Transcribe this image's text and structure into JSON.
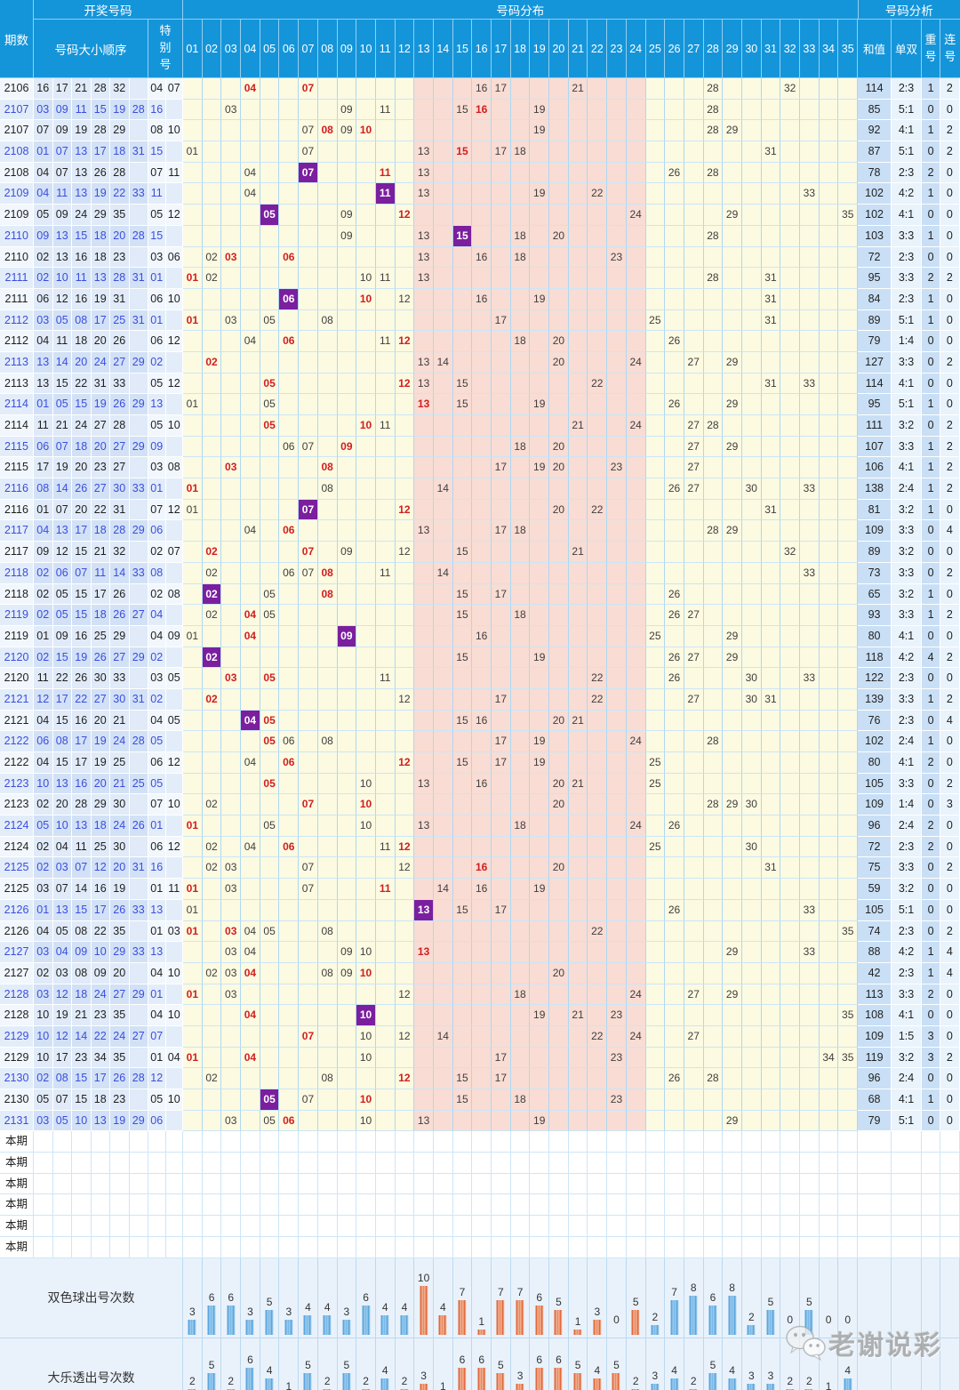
{
  "header": {
    "period": "期数",
    "draw_group": "开奖号码",
    "order": "号码大小顺序",
    "special": "特别号",
    "dist_group": "号码分布",
    "analysis_group": "号码分析",
    "sum": "和值",
    "odd_even": "单双",
    "repeat": "重号",
    "consecutive": "连号",
    "dist_columns": [
      "01",
      "02",
      "03",
      "04",
      "05",
      "06",
      "07",
      "08",
      "09",
      "10",
      "11",
      "12",
      "13",
      "14",
      "15",
      "16",
      "17",
      "18",
      "19",
      "20",
      "21",
      "22",
      "23",
      "24",
      "25",
      "26",
      "27",
      "28",
      "29",
      "30",
      "31",
      "32",
      "33",
      "34",
      "35"
    ]
  },
  "rows": [
    {
      "period": "2106",
      "game": "dlt",
      "numbers": [
        16,
        17,
        21,
        28,
        32
      ],
      "special": [
        4,
        7
      ],
      "sum": 114,
      "odd_even": "2:3",
      "repeat": 1,
      "consecutive": 2
    },
    {
      "period": "2107",
      "game": "ssq",
      "numbers": [
        3,
        9,
        11,
        15,
        19,
        28
      ],
      "special": [
        16
      ],
      "sum": 85,
      "odd_even": "5:1",
      "repeat": 0,
      "consecutive": 0
    },
    {
      "period": "2107",
      "game": "dlt",
      "numbers": [
        7,
        9,
        19,
        28,
        29
      ],
      "special": [
        8,
        10
      ],
      "sum": 92,
      "odd_even": "4:1",
      "repeat": 1,
      "consecutive": 2
    },
    {
      "period": "2108",
      "game": "ssq",
      "numbers": [
        1,
        7,
        13,
        17,
        18,
        31
      ],
      "special": [
        15
      ],
      "sum": 87,
      "odd_even": "5:1",
      "repeat": 0,
      "consecutive": 2
    },
    {
      "period": "2108",
      "game": "dlt",
      "numbers": [
        4,
        7,
        13,
        26,
        28
      ],
      "special": [
        7,
        11
      ],
      "sum": 78,
      "odd_even": "2:3",
      "repeat": 2,
      "consecutive": 0
    },
    {
      "period": "2109",
      "game": "ssq",
      "numbers": [
        4,
        11,
        13,
        19,
        22,
        33
      ],
      "special": [
        11
      ],
      "sum": 102,
      "odd_even": "4:2",
      "repeat": 1,
      "consecutive": 0
    },
    {
      "period": "2109",
      "game": "dlt",
      "numbers": [
        5,
        9,
        24,
        29,
        35
      ],
      "special": [
        5,
        12
      ],
      "sum": 102,
      "odd_even": "4:1",
      "repeat": 0,
      "consecutive": 0
    },
    {
      "period": "2110",
      "game": "ssq",
      "numbers": [
        9,
        13,
        15,
        18,
        20,
        28
      ],
      "special": [
        15
      ],
      "sum": 103,
      "odd_even": "3:3",
      "repeat": 1,
      "consecutive": 0
    },
    {
      "period": "2110",
      "game": "dlt",
      "numbers": [
        2,
        13,
        16,
        18,
        23
      ],
      "special": [
        3,
        6
      ],
      "sum": 72,
      "odd_even": "2:3",
      "repeat": 0,
      "consecutive": 0
    },
    {
      "period": "2111",
      "game": "ssq",
      "numbers": [
        2,
        10,
        11,
        13,
        28,
        31
      ],
      "special": [
        1
      ],
      "sum": 95,
      "odd_even": "3:3",
      "repeat": 2,
      "consecutive": 2
    },
    {
      "period": "2111",
      "game": "dlt",
      "numbers": [
        6,
        12,
        16,
        19,
        31
      ],
      "special": [
        6,
        10
      ],
      "sum": 84,
      "odd_even": "2:3",
      "repeat": 1,
      "consecutive": 0
    },
    {
      "period": "2112",
      "game": "ssq",
      "numbers": [
        3,
        5,
        8,
        17,
        25,
        31
      ],
      "special": [
        1
      ],
      "sum": 89,
      "odd_even": "5:1",
      "repeat": 1,
      "consecutive": 0
    },
    {
      "period": "2112",
      "game": "dlt",
      "numbers": [
        4,
        11,
        18,
        20,
        26
      ],
      "special": [
        6,
        12
      ],
      "sum": 79,
      "odd_even": "1:4",
      "repeat": 0,
      "consecutive": 0
    },
    {
      "period": "2113",
      "game": "ssq",
      "numbers": [
        13,
        14,
        20,
        24,
        27,
        29
      ],
      "special": [
        2
      ],
      "sum": 127,
      "odd_even": "3:3",
      "repeat": 0,
      "consecutive": 2
    },
    {
      "period": "2113",
      "game": "dlt",
      "numbers": [
        13,
        15,
        22,
        31,
        33
      ],
      "special": [
        5,
        12
      ],
      "sum": 114,
      "odd_even": "4:1",
      "repeat": 0,
      "consecutive": 0
    },
    {
      "period": "2114",
      "game": "ssq",
      "numbers": [
        1,
        5,
        15,
        19,
        26,
        29
      ],
      "special": [
        13
      ],
      "sum": 95,
      "odd_even": "5:1",
      "repeat": 1,
      "consecutive": 0
    },
    {
      "period": "2114",
      "game": "dlt",
      "numbers": [
        11,
        21,
        24,
        27,
        28
      ],
      "special": [
        5,
        10
      ],
      "sum": 111,
      "odd_even": "3:2",
      "repeat": 0,
      "consecutive": 2
    },
    {
      "period": "2115",
      "game": "ssq",
      "numbers": [
        6,
        7,
        18,
        20,
        27,
        29
      ],
      "special": [
        9
      ],
      "sum": 107,
      "odd_even": "3:3",
      "repeat": 1,
      "consecutive": 2
    },
    {
      "period": "2115",
      "game": "dlt",
      "numbers": [
        17,
        19,
        20,
        23,
        27
      ],
      "special": [
        3,
        8
      ],
      "sum": 106,
      "odd_even": "4:1",
      "repeat": 1,
      "consecutive": 2
    },
    {
      "period": "2116",
      "game": "ssq",
      "numbers": [
        8,
        14,
        26,
        27,
        30,
        33
      ],
      "special": [
        1
      ],
      "sum": 138,
      "odd_even": "2:4",
      "repeat": 1,
      "consecutive": 2
    },
    {
      "period": "2116",
      "game": "dlt",
      "numbers": [
        1,
        7,
        20,
        22,
        31
      ],
      "special": [
        7,
        12
      ],
      "sum": 81,
      "odd_even": "3:2",
      "repeat": 1,
      "consecutive": 0
    },
    {
      "period": "2117",
      "game": "ssq",
      "numbers": [
        4,
        13,
        17,
        18,
        28,
        29
      ],
      "special": [
        6
      ],
      "sum": 109,
      "odd_even": "3:3",
      "repeat": 0,
      "consecutive": 4
    },
    {
      "period": "2117",
      "game": "dlt",
      "numbers": [
        9,
        12,
        15,
        21,
        32
      ],
      "special": [
        2,
        7
      ],
      "sum": 89,
      "odd_even": "3:2",
      "repeat": 0,
      "consecutive": 0
    },
    {
      "period": "2118",
      "game": "ssq",
      "numbers": [
        2,
        6,
        7,
        11,
        14,
        33
      ],
      "special": [
        8
      ],
      "sum": 73,
      "odd_even": "3:3",
      "repeat": 0,
      "consecutive": 2
    },
    {
      "period": "2118",
      "game": "dlt",
      "numbers": [
        2,
        5,
        15,
        17,
        26
      ],
      "special": [
        2,
        8
      ],
      "sum": 65,
      "odd_even": "3:2",
      "repeat": 1,
      "consecutive": 0
    },
    {
      "period": "2119",
      "game": "ssq",
      "numbers": [
        2,
        5,
        15,
        18,
        26,
        27
      ],
      "special": [
        4
      ],
      "sum": 93,
      "odd_even": "3:3",
      "repeat": 1,
      "consecutive": 2
    },
    {
      "period": "2119",
      "game": "dlt",
      "numbers": [
        1,
        9,
        16,
        25,
        29
      ],
      "special": [
        4,
        9
      ],
      "sum": 80,
      "odd_even": "4:1",
      "repeat": 0,
      "consecutive": 0
    },
    {
      "period": "2120",
      "game": "ssq",
      "numbers": [
        2,
        15,
        19,
        26,
        27,
        29
      ],
      "special": [
        2
      ],
      "sum": 118,
      "odd_even": "4:2",
      "repeat": 4,
      "consecutive": 2
    },
    {
      "period": "2120",
      "game": "dlt",
      "numbers": [
        11,
        22,
        26,
        30,
        33
      ],
      "special": [
        3,
        5
      ],
      "sum": 122,
      "odd_even": "2:3",
      "repeat": 0,
      "consecutive": 0
    },
    {
      "period": "2121",
      "game": "ssq",
      "numbers": [
        12,
        17,
        22,
        27,
        30,
        31
      ],
      "special": [
        2
      ],
      "sum": 139,
      "odd_even": "3:3",
      "repeat": 1,
      "consecutive": 2
    },
    {
      "period": "2121",
      "game": "dlt",
      "numbers": [
        4,
        15,
        16,
        20,
        21
      ],
      "special": [
        4,
        5
      ],
      "sum": 76,
      "odd_even": "2:3",
      "repeat": 0,
      "consecutive": 4
    },
    {
      "period": "2122",
      "game": "ssq",
      "numbers": [
        6,
        8,
        17,
        19,
        24,
        28
      ],
      "special": [
        5
      ],
      "sum": 102,
      "odd_even": "2:4",
      "repeat": 1,
      "consecutive": 0
    },
    {
      "period": "2122",
      "game": "dlt",
      "numbers": [
        4,
        15,
        17,
        19,
        25
      ],
      "special": [
        6,
        12
      ],
      "sum": 80,
      "odd_even": "4:1",
      "repeat": 2,
      "consecutive": 0
    },
    {
      "period": "2123",
      "game": "ssq",
      "numbers": [
        10,
        13,
        16,
        20,
        21,
        25
      ],
      "special": [
        5
      ],
      "sum": 105,
      "odd_even": "3:3",
      "repeat": 0,
      "consecutive": 2
    },
    {
      "period": "2123",
      "game": "dlt",
      "numbers": [
        2,
        20,
        28,
        29,
        30
      ],
      "special": [
        7,
        10
      ],
      "sum": 109,
      "odd_even": "1:4",
      "repeat": 0,
      "consecutive": 3
    },
    {
      "period": "2124",
      "game": "ssq",
      "numbers": [
        5,
        10,
        13,
        18,
        24,
        26
      ],
      "special": [
        1
      ],
      "sum": 96,
      "odd_even": "2:4",
      "repeat": 2,
      "consecutive": 0
    },
    {
      "period": "2124",
      "game": "dlt",
      "numbers": [
        2,
        4,
        11,
        25,
        30
      ],
      "special": [
        6,
        12
      ],
      "sum": 72,
      "odd_even": "2:3",
      "repeat": 2,
      "consecutive": 0
    },
    {
      "period": "2125",
      "game": "ssq",
      "numbers": [
        2,
        3,
        7,
        12,
        20,
        31
      ],
      "special": [
        16
      ],
      "sum": 75,
      "odd_even": "3:3",
      "repeat": 0,
      "consecutive": 2
    },
    {
      "period": "2125",
      "game": "dlt",
      "numbers": [
        3,
        7,
        14,
        16,
        19
      ],
      "special": [
        1,
        11
      ],
      "sum": 59,
      "odd_even": "3:2",
      "repeat": 0,
      "consecutive": 0
    },
    {
      "period": "2126",
      "game": "ssq",
      "numbers": [
        1,
        13,
        15,
        17,
        26,
        33
      ],
      "special": [
        13
      ],
      "sum": 105,
      "odd_even": "5:1",
      "repeat": 0,
      "consecutive": 0
    },
    {
      "period": "2126",
      "game": "dlt",
      "numbers": [
        4,
        5,
        8,
        22,
        35
      ],
      "special": [
        1,
        3
      ],
      "sum": 74,
      "odd_even": "2:3",
      "repeat": 0,
      "consecutive": 2
    },
    {
      "period": "2127",
      "game": "ssq",
      "numbers": [
        3,
        4,
        9,
        10,
        29,
        33
      ],
      "special": [
        13
      ],
      "sum": 88,
      "odd_even": "4:2",
      "repeat": 1,
      "consecutive": 4
    },
    {
      "period": "2127",
      "game": "dlt",
      "numbers": [
        2,
        3,
        8,
        9,
        20
      ],
      "special": [
        4,
        10
      ],
      "sum": 42,
      "odd_even": "2:3",
      "repeat": 1,
      "consecutive": 4
    },
    {
      "period": "2128",
      "game": "ssq",
      "numbers": [
        3,
        12,
        18,
        24,
        27,
        29
      ],
      "special": [
        1
      ],
      "sum": 113,
      "odd_even": "3:3",
      "repeat": 2,
      "consecutive": 0
    },
    {
      "period": "2128",
      "game": "dlt",
      "numbers": [
        10,
        19,
        21,
        23,
        35
      ],
      "special": [
        4,
        10
      ],
      "sum": 108,
      "odd_even": "4:1",
      "repeat": 0,
      "consecutive": 0
    },
    {
      "period": "2129",
      "game": "ssq",
      "numbers": [
        10,
        12,
        14,
        22,
        24,
        27
      ],
      "special": [
        7
      ],
      "sum": 109,
      "odd_even": "1:5",
      "repeat": 3,
      "consecutive": 0
    },
    {
      "period": "2129",
      "game": "dlt",
      "numbers": [
        10,
        17,
        23,
        34,
        35
      ],
      "special": [
        1,
        4
      ],
      "sum": 119,
      "odd_even": "3:2",
      "repeat": 3,
      "consecutive": 2
    },
    {
      "period": "2130",
      "game": "ssq",
      "numbers": [
        2,
        8,
        15,
        17,
        26,
        28
      ],
      "special": [
        12
      ],
      "sum": 96,
      "odd_even": "2:4",
      "repeat": 0,
      "consecutive": 0
    },
    {
      "period": "2130",
      "game": "dlt",
      "numbers": [
        5,
        7,
        15,
        18,
        23
      ],
      "special": [
        5,
        10
      ],
      "sum": 68,
      "odd_even": "4:1",
      "repeat": 1,
      "consecutive": 0
    },
    {
      "period": "2131",
      "game": "ssq",
      "numbers": [
        3,
        5,
        10,
        13,
        19,
        29
      ],
      "special": [
        6
      ],
      "sum": 79,
      "odd_even": "5:1",
      "repeat": 0,
      "consecutive": 0
    }
  ],
  "pending": {
    "label": "本期",
    "count": 6
  },
  "chart_data": [
    {
      "type": "bar",
      "title": "双色球出号次数",
      "categories": [
        "01",
        "02",
        "03",
        "04",
        "05",
        "06",
        "07",
        "08",
        "09",
        "10",
        "11",
        "12",
        "13",
        "14",
        "15",
        "16",
        "17",
        "18",
        "19",
        "20",
        "21",
        "22",
        "23",
        "24",
        "25",
        "26",
        "27",
        "28",
        "29",
        "30",
        "31",
        "32",
        "33",
        "34",
        "35"
      ],
      "values": [
        3,
        6,
        6,
        3,
        5,
        3,
        4,
        4,
        3,
        6,
        4,
        4,
        10,
        4,
        7,
        1,
        7,
        7,
        6,
        5,
        1,
        3,
        0,
        5,
        2,
        7,
        8,
        6,
        8,
        2,
        5,
        0,
        5,
        0,
        0
      ]
    },
    {
      "type": "bar",
      "title": "大乐透出号次数",
      "categories": [
        "01",
        "02",
        "03",
        "04",
        "05",
        "06",
        "07",
        "08",
        "09",
        "10",
        "11",
        "12",
        "13",
        "14",
        "15",
        "16",
        "17",
        "18",
        "19",
        "20",
        "21",
        "22",
        "23",
        "24",
        "25",
        "26",
        "27",
        "28",
        "29",
        "30",
        "31",
        "32",
        "33",
        "34",
        "35"
      ],
      "values": [
        2,
        5,
        2,
        6,
        4,
        1,
        5,
        2,
        5,
        2,
        4,
        2,
        3,
        1,
        6,
        6,
        5,
        3,
        6,
        6,
        5,
        4,
        5,
        2,
        3,
        4,
        2,
        5,
        4,
        3,
        3,
        2,
        2,
        1,
        4
      ]
    }
  ],
  "watermark": {
    "text": "老谢说彩"
  },
  "colors": {
    "header_bg": "#1495da",
    "zone1_bg": "#fcfae1",
    "zone2_bg": "#f9dcd3",
    "ssq_text": "#3b4ede",
    "special_red": "#d01e1e",
    "overlap_purple": "#7b1f9e",
    "bar_blue": "#5ba6df",
    "bar_orange": "#df6a3e"
  }
}
